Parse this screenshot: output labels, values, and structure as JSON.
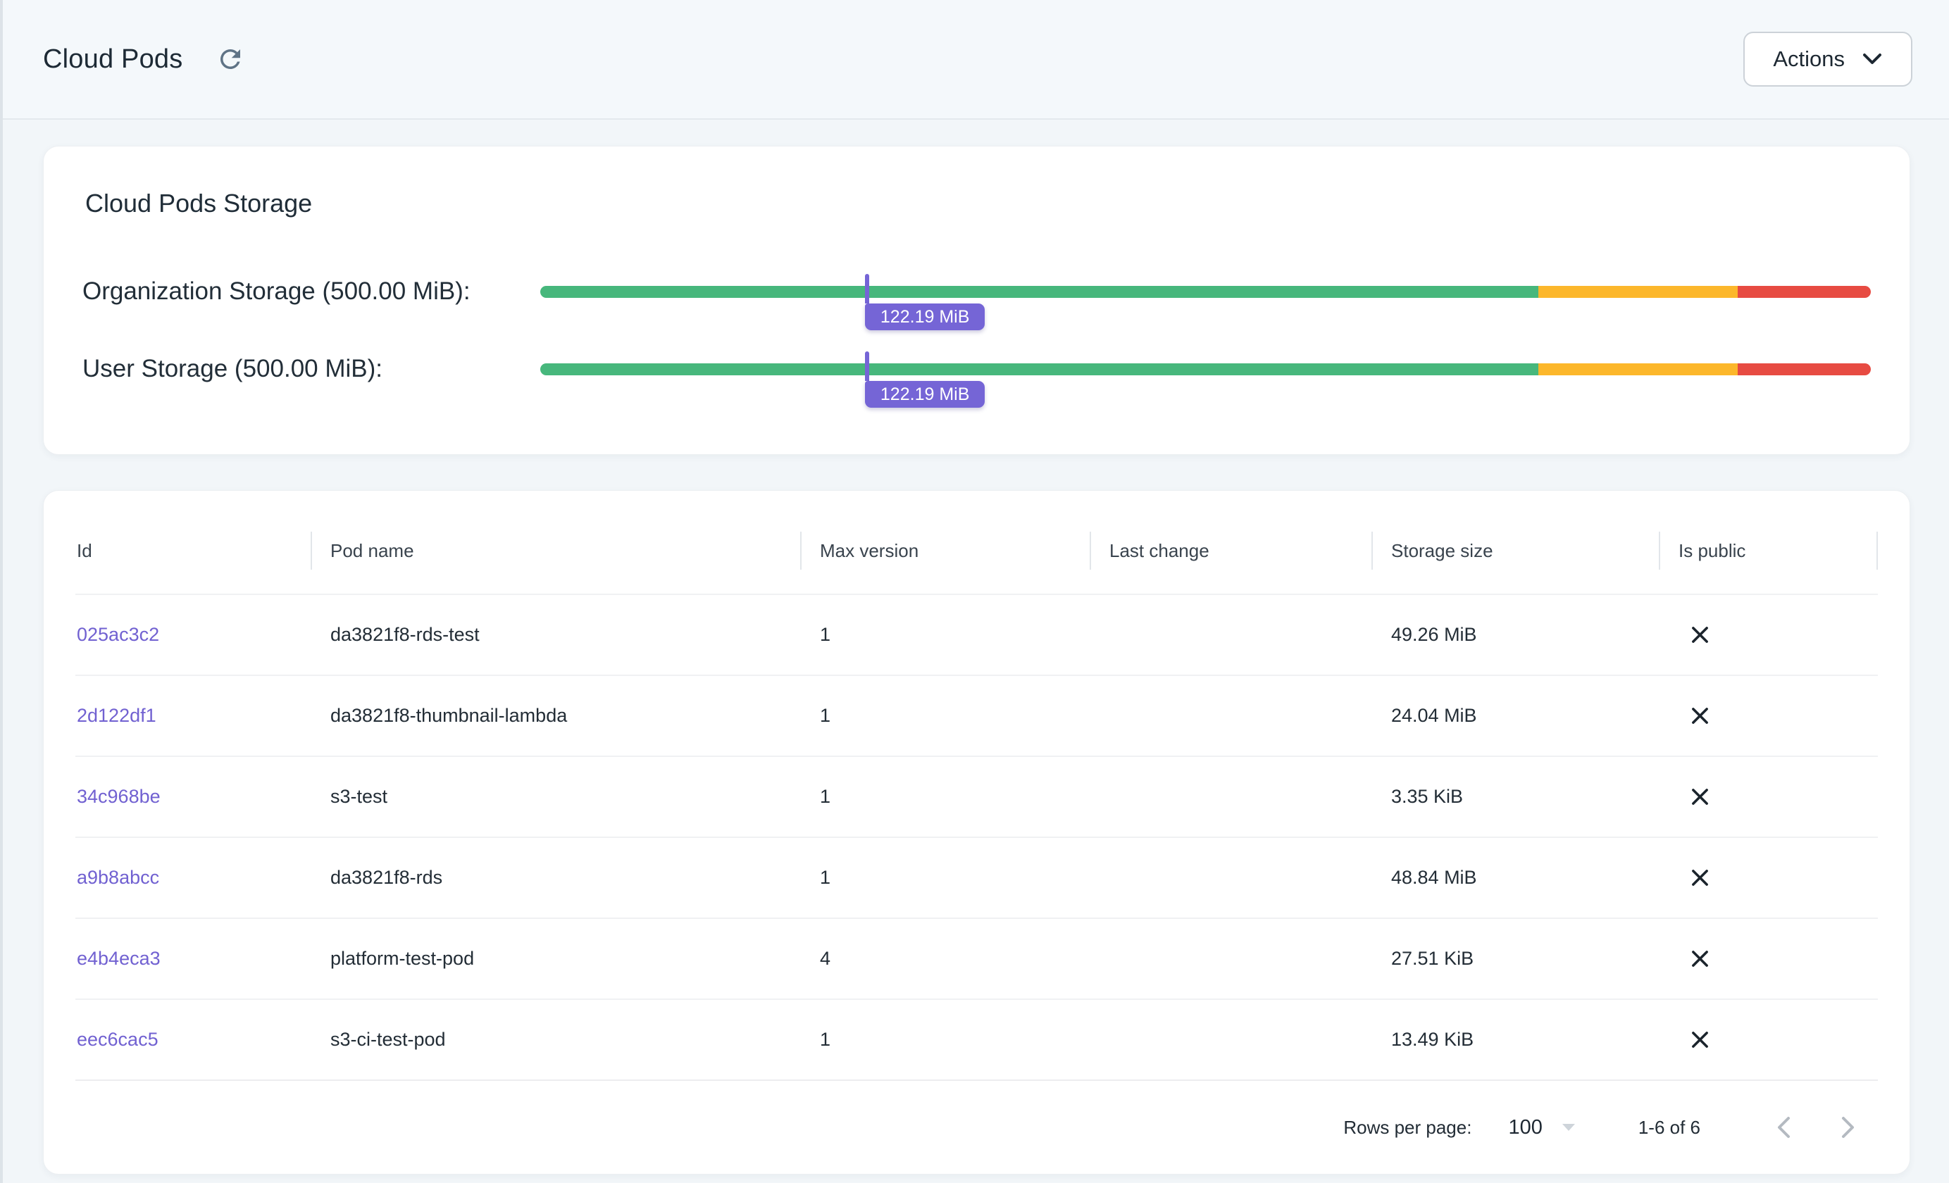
{
  "header": {
    "title": "Cloud Pods",
    "actions_label": "Actions"
  },
  "storage": {
    "title": "Cloud Pods Storage",
    "colors": {
      "green": "#47b77c",
      "yellow": "#fcb72b",
      "red": "#e74b42",
      "marker": "#7565d6"
    },
    "meters": [
      {
        "label": "Organization Storage (500.00 MiB):",
        "value_label": "122.19 MiB",
        "marker_pct": 24.4,
        "segments": {
          "green_pct": 75,
          "yellow_pct": 15,
          "red_pct": 10
        }
      },
      {
        "label": "User Storage (500.00 MiB):",
        "value_label": "122.19 MiB",
        "marker_pct": 24.4,
        "segments": {
          "green_pct": 75,
          "yellow_pct": 15,
          "red_pct": 10
        }
      }
    ]
  },
  "table": {
    "columns": [
      "Id",
      "Pod name",
      "Max version",
      "Last change",
      "Storage size",
      "Is public"
    ],
    "rows": [
      {
        "id": "025ac3c2",
        "pod_name": "da3821f8-rds-test",
        "max_version": "1",
        "last_change": "",
        "storage_size": "49.26 MiB",
        "is_public": false
      },
      {
        "id": "2d122df1",
        "pod_name": "da3821f8-thumbnail-lambda",
        "max_version": "1",
        "last_change": "",
        "storage_size": "24.04 MiB",
        "is_public": false
      },
      {
        "id": "34c968be",
        "pod_name": "s3-test",
        "max_version": "1",
        "last_change": "",
        "storage_size": "3.35 KiB",
        "is_public": false
      },
      {
        "id": "a9b8abcc",
        "pod_name": "da3821f8-rds",
        "max_version": "1",
        "last_change": "",
        "storage_size": "48.84 MiB",
        "is_public": false
      },
      {
        "id": "e4b4eca3",
        "pod_name": "platform-test-pod",
        "max_version": "4",
        "last_change": "",
        "storage_size": "27.51 KiB",
        "is_public": false
      },
      {
        "id": "eec6cac5",
        "pod_name": "s3-ci-test-pod",
        "max_version": "1",
        "last_change": "",
        "storage_size": "13.49 KiB",
        "is_public": false
      }
    ],
    "pagination": {
      "rows_per_page_label": "Rows per page:",
      "rows_per_page_value": "100",
      "range_label": "1-6 of 6"
    }
  }
}
